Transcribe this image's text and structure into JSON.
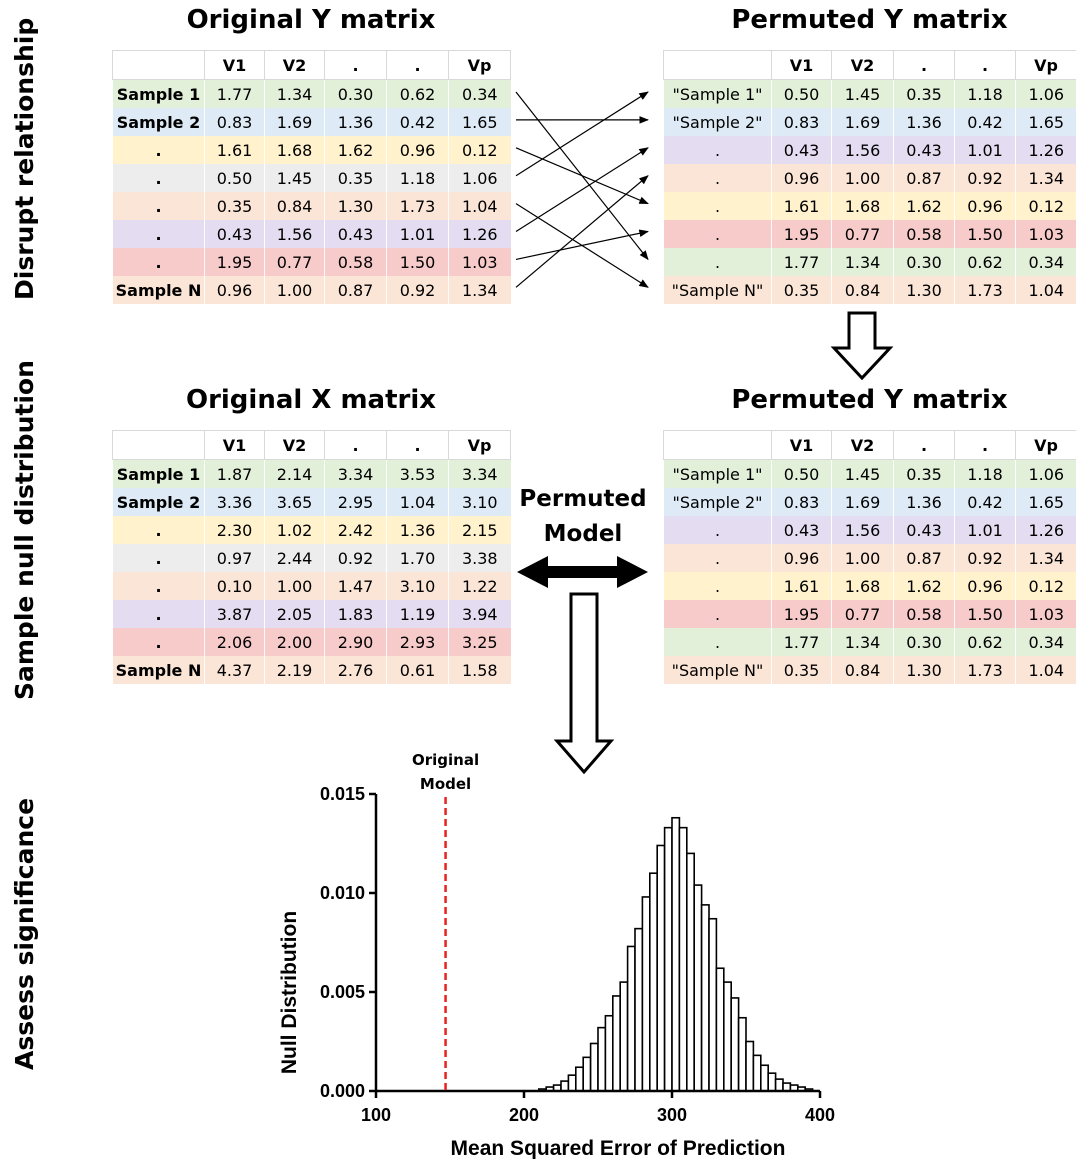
{
  "sections": {
    "disrupt": "Disrupt relationship",
    "sample": "Sample null distribution",
    "assess": "Assess significance"
  },
  "row_colors": [
    "#e2efd9",
    "#deebf7",
    "#fff2cc",
    "#ededed",
    "#fbe5d6",
    "#e4dcf0",
    "#f8cbcb",
    "#fbe5d6"
  ],
  "original_y": {
    "title": "Original Y matrix",
    "headers": [
      "",
      "V1",
      "V2",
      ".",
      ".",
      "Vp"
    ],
    "rows": [
      [
        "Sample 1",
        "1.77",
        "1.34",
        "0.30",
        "0.62",
        "0.34"
      ],
      [
        "Sample 2",
        "0.83",
        "1.69",
        "1.36",
        "0.42",
        "1.65"
      ],
      [
        ".",
        "1.61",
        "1.68",
        "1.62",
        "0.96",
        "0.12"
      ],
      [
        ".",
        "0.50",
        "1.45",
        "0.35",
        "1.18",
        "1.06"
      ],
      [
        ".",
        "0.35",
        "0.84",
        "1.30",
        "1.73",
        "1.04"
      ],
      [
        ".",
        "0.43",
        "1.56",
        "0.43",
        "1.01",
        "1.26"
      ],
      [
        ".",
        "1.95",
        "0.77",
        "0.58",
        "1.50",
        "1.03"
      ],
      [
        "Sample N",
        "0.96",
        "1.00",
        "0.87",
        "0.92",
        "1.34"
      ]
    ]
  },
  "permuted_y_top": {
    "title": "Permuted Y matrix",
    "headers": [
      "",
      "V1",
      "V2",
      ".",
      ".",
      "Vp"
    ],
    "row_color_index": [
      0,
      1,
      5,
      4,
      2,
      6,
      0,
      7
    ],
    "rows": [
      [
        "\"Sample 1\"",
        "0.50",
        "1.45",
        "0.35",
        "1.18",
        "1.06"
      ],
      [
        "\"Sample 2\"",
        "0.83",
        "1.69",
        "1.36",
        "0.42",
        "1.65"
      ],
      [
        ".",
        "0.43",
        "1.56",
        "0.43",
        "1.01",
        "1.26"
      ],
      [
        ".",
        "0.96",
        "1.00",
        "0.87",
        "0.92",
        "1.34"
      ],
      [
        ".",
        "1.61",
        "1.68",
        "1.62",
        "0.96",
        "0.12"
      ],
      [
        ".",
        "1.95",
        "0.77",
        "0.58",
        "1.50",
        "1.03"
      ],
      [
        ".",
        "1.77",
        "1.34",
        "0.30",
        "0.62",
        "0.34"
      ],
      [
        "\"Sample N\"",
        "0.35",
        "0.84",
        "1.30",
        "1.73",
        "1.04"
      ]
    ]
  },
  "original_x": {
    "title": "Original X matrix",
    "headers": [
      "",
      "V1",
      "V2",
      ".",
      ".",
      "Vp"
    ],
    "rows": [
      [
        "Sample 1",
        "1.87",
        "2.14",
        "3.34",
        "3.53",
        "3.34"
      ],
      [
        "Sample 2",
        "3.36",
        "3.65",
        "2.95",
        "1.04",
        "3.10"
      ],
      [
        ".",
        "2.30",
        "1.02",
        "2.42",
        "1.36",
        "2.15"
      ],
      [
        ".",
        "0.97",
        "2.44",
        "0.92",
        "1.70",
        "3.38"
      ],
      [
        ".",
        "0.10",
        "1.00",
        "1.47",
        "3.10",
        "1.22"
      ],
      [
        ".",
        "3.87",
        "2.05",
        "1.83",
        "1.19",
        "3.94"
      ],
      [
        ".",
        "2.06",
        "2.00",
        "2.90",
        "2.93",
        "3.25"
      ],
      [
        "Sample N",
        "4.37",
        "2.19",
        "2.76",
        "0.61",
        "1.58"
      ]
    ]
  },
  "permuted_y_bottom": {
    "title": "Permuted Y matrix",
    "headers": [
      "",
      "V1",
      "V2",
      ".",
      ".",
      "Vp"
    ],
    "row_color_index": [
      0,
      1,
      5,
      4,
      2,
      6,
      0,
      7
    ],
    "rows": [
      [
        "\"Sample 1\"",
        "0.50",
        "1.45",
        "0.35",
        "1.18",
        "1.06"
      ],
      [
        "\"Sample 2\"",
        "0.83",
        "1.69",
        "1.36",
        "0.42",
        "1.65"
      ],
      [
        ".",
        "0.43",
        "1.56",
        "0.43",
        "1.01",
        "1.26"
      ],
      [
        ".",
        "0.96",
        "1.00",
        "0.87",
        "0.92",
        "1.34"
      ],
      [
        ".",
        "1.61",
        "1.68",
        "1.62",
        "0.96",
        "0.12"
      ],
      [
        ".",
        "1.95",
        "0.77",
        "0.58",
        "1.50",
        "1.03"
      ],
      [
        ".",
        "1.77",
        "1.34",
        "0.30",
        "0.62",
        "0.34"
      ],
      [
        "\"Sample N\"",
        "0.35",
        "0.84",
        "1.30",
        "1.73",
        "1.04"
      ]
    ]
  },
  "permutation_links": [
    {
      "from": 0,
      "to": 6
    },
    {
      "from": 1,
      "to": 1
    },
    {
      "from": 2,
      "to": 4
    },
    {
      "from": 3,
      "to": 0
    },
    {
      "from": 4,
      "to": 7
    },
    {
      "from": 5,
      "to": 2
    },
    {
      "from": 6,
      "to": 5
    },
    {
      "from": 7,
      "to": 3
    }
  ],
  "permuted_model": {
    "line1": "Permuted",
    "line2": "Model"
  },
  "chart_data": {
    "type": "bar",
    "xlabel": "Mean Squared Error of Prediction",
    "ylabel": "Null Distribution",
    "xlim": [
      100,
      400
    ],
    "ylim": [
      0,
      0.015
    ],
    "x_ticks": [
      "100",
      "200",
      "300",
      "400"
    ],
    "y_ticks": [
      "0.000",
      "0.005",
      "0.010",
      "0.015"
    ],
    "bin_width": 5,
    "bin_starts": [
      210,
      215,
      220,
      225,
      230,
      235,
      240,
      245,
      250,
      255,
      260,
      265,
      270,
      275,
      280,
      285,
      290,
      295,
      300,
      305,
      310,
      315,
      320,
      325,
      330,
      335,
      340,
      345,
      350,
      355,
      360,
      365,
      370,
      375,
      380,
      385,
      390
    ],
    "values": [
      0.0001,
      0.0002,
      0.0003,
      0.0005,
      0.0008,
      0.0012,
      0.0017,
      0.0024,
      0.0032,
      0.0038,
      0.0048,
      0.0055,
      0.0073,
      0.0082,
      0.0098,
      0.011,
      0.0124,
      0.0133,
      0.0138,
      0.0133,
      0.012,
      0.0104,
      0.0094,
      0.0087,
      0.0062,
      0.0055,
      0.0047,
      0.0037,
      0.0025,
      0.0018,
      0.0013,
      0.0009,
      0.0006,
      0.0004,
      0.0003,
      0.0002,
      0.0001
    ],
    "reference_line": {
      "label_line1": "Original",
      "label_line2": "Model",
      "x": 147,
      "color": "#e8221e",
      "style": "dashed"
    }
  }
}
